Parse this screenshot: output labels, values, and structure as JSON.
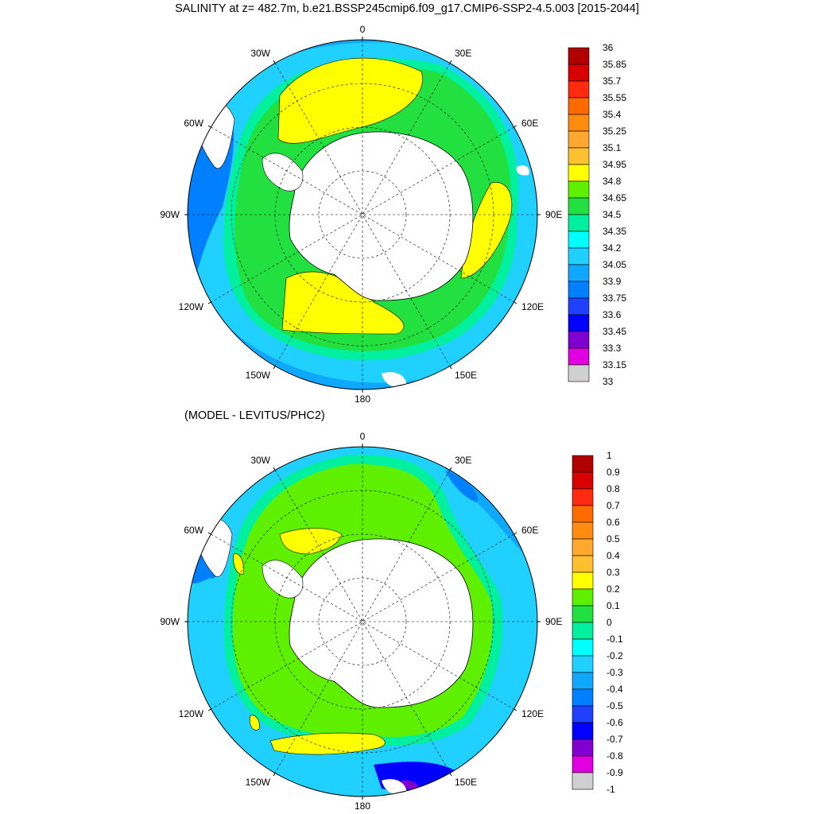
{
  "title": "SALINITY at z= 482.7m, b.e21.BSSP245cmip6.f09_g17.CMIP6-SSP2-4.5.003 [2015-2044]",
  "maps": [
    {
      "subtitle": "",
      "lon_labels": {
        "0": "0",
        "30E": "30E",
        "60E": "60E",
        "90E": "90E",
        "120E": "120E",
        "150E": "150E",
        "180": "180",
        "150W": "150W",
        "120W": "120W",
        "90W": "90W",
        "60W": "60W",
        "30W": "30W"
      },
      "colorbar": {
        "labels": [
          "36",
          "35.85",
          "35.7",
          "35.55",
          "35.4",
          "35.25",
          "35.1",
          "34.95",
          "34.8",
          "34.65",
          "34.5",
          "34.35",
          "34.2",
          "34.05",
          "33.9",
          "33.75",
          "33.6",
          "33.45",
          "33.3",
          "33.15",
          "33"
        ],
        "colors": [
          "#b00000",
          "#d80000",
          "#ff2a10",
          "#ff6a00",
          "#ff8c10",
          "#ffa830",
          "#ffc030",
          "#ffff00",
          "#5ef000",
          "#22e040",
          "#00f0a0",
          "#00ffff",
          "#20d0ff",
          "#10a8ff",
          "#0080ff",
          "#2040ff",
          "#0000ff",
          "#8000d0",
          "#e000e0",
          "#d0d0d0",
          "#707070"
        ]
      }
    },
    {
      "subtitle": "(MODEL - LEVITUS/PHC2)",
      "lon_labels": {
        "0": "0",
        "30E": "30E",
        "60E": "60E",
        "90E": "90E",
        "120E": "120E",
        "150E": "150E",
        "180": "180",
        "150W": "150W",
        "120W": "120W",
        "90W": "90W",
        "60W": "60W",
        "30W": "30W"
      },
      "colorbar": {
        "labels": [
          "1",
          "0.9",
          "0.8",
          "0.7",
          "0.6",
          "0.5",
          "0.4",
          "0.3",
          "0.2",
          "0.1",
          "0",
          "-0.1",
          "-0.2",
          "-0.3",
          "-0.4",
          "-0.5",
          "-0.6",
          "-0.7",
          "-0.8",
          "-0.9",
          "-1"
        ],
        "colors": [
          "#b00000",
          "#d80000",
          "#ff2a10",
          "#ff6a00",
          "#ff8c10",
          "#ffa830",
          "#ffc030",
          "#ffff00",
          "#5ef000",
          "#22e040",
          "#00f0a0",
          "#00ffff",
          "#20d0ff",
          "#10a8ff",
          "#0080ff",
          "#2040ff",
          "#0000ff",
          "#8000d0",
          "#e000e0",
          "#d0d0d0",
          "#707070"
        ]
      }
    }
  ]
}
